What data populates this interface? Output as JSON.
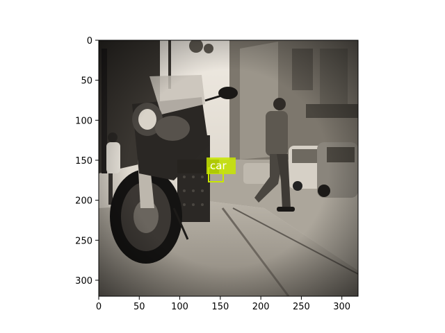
{
  "figure": {
    "image_description_icon": "photo-street-motorcycle",
    "x_ticks": [
      "0",
      "50",
      "100",
      "150",
      "200",
      "250",
      "300"
    ],
    "y_ticks": [
      "0",
      "50",
      "100",
      "150",
      "200",
      "250",
      "300"
    ],
    "x_range": [
      0,
      320
    ],
    "y_range": [
      0,
      320
    ]
  },
  "detections": [
    {
      "label": "car",
      "color": "#c8e600"
    }
  ]
}
